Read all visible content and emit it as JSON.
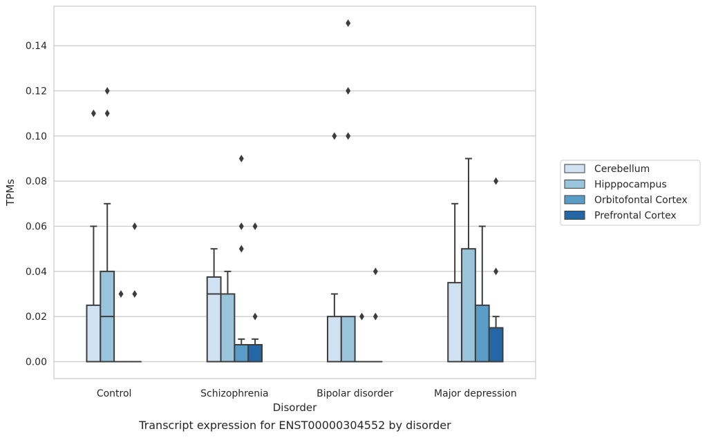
{
  "caption": "Transcript expression for ENST00000304552 by disorder",
  "colors": {
    "grid": "#cccccc",
    "frame": "#cccccc",
    "box_edge": "#3d3d3d"
  },
  "chart_data": {
    "type": "box",
    "xlabel": "Disorder",
    "ylabel": "TPMs",
    "ylim": [
      -0.0075,
      0.1575
    ],
    "yticks": [
      0.0,
      0.02,
      0.04,
      0.06,
      0.08,
      0.1,
      0.12,
      0.14
    ],
    "ytick_labels": [
      "0.00",
      "0.02",
      "0.04",
      "0.06",
      "0.08",
      "0.10",
      "0.12",
      "0.14"
    ],
    "grid": true,
    "legend_position": "right",
    "categories": [
      "Control",
      "Schizophrenia",
      "Bipolar disorder",
      "Major depression"
    ],
    "series": [
      {
        "name": "Cerebellum",
        "color": "#d0e1f2",
        "boxes": [
          {
            "q1": 0.0,
            "median": 0.0,
            "q3": 0.025,
            "whisker_low": 0.0,
            "whisker_high": 0.06,
            "outliers": [
              0.11
            ]
          },
          {
            "q1": 0.0,
            "median": 0.03,
            "q3": 0.0375,
            "whisker_low": 0.0,
            "whisker_high": 0.05,
            "outliers": []
          },
          {
            "q1": 0.0,
            "median": 0.0,
            "q3": 0.02,
            "whisker_low": 0.0,
            "whisker_high": 0.03,
            "outliers": [
              0.1
            ]
          },
          {
            "q1": 0.0,
            "median": 0.0,
            "q3": 0.035,
            "whisker_low": 0.0,
            "whisker_high": 0.07,
            "outliers": []
          }
        ]
      },
      {
        "name": "Hipppocampus",
        "color": "#9ac3dc",
        "boxes": [
          {
            "q1": 0.0,
            "median": 0.02,
            "q3": 0.04,
            "whisker_low": 0.0,
            "whisker_high": 0.07,
            "outliers": [
              0.11,
              0.12
            ]
          },
          {
            "q1": 0.0,
            "median": 0.03,
            "q3": 0.03,
            "whisker_low": 0.0,
            "whisker_high": 0.04,
            "outliers": []
          },
          {
            "q1": 0.0,
            "median": 0.0,
            "q3": 0.02,
            "whisker_low": 0.0,
            "whisker_high": 0.02,
            "outliers": [
              0.1,
              0.12,
              0.15
            ]
          },
          {
            "q1": 0.0,
            "median": 0.0,
            "q3": 0.05,
            "whisker_low": 0.0,
            "whisker_high": 0.09,
            "outliers": []
          }
        ]
      },
      {
        "name": "Orbitofontal Cortex",
        "color": "#5a9cc8",
        "boxes": [
          {
            "q1": 0.0,
            "median": 0.0,
            "q3": 0.0,
            "whisker_low": 0.0,
            "whisker_high": 0.0,
            "outliers": [
              0.03
            ]
          },
          {
            "q1": 0.0,
            "median": 0.0,
            "q3": 0.0075,
            "whisker_low": 0.0,
            "whisker_high": 0.01,
            "outliers": [
              0.05,
              0.06,
              0.09
            ]
          },
          {
            "q1": 0.0,
            "median": 0.0,
            "q3": 0.0,
            "whisker_low": 0.0,
            "whisker_high": 0.0,
            "outliers": [
              0.02
            ]
          },
          {
            "q1": 0.0,
            "median": 0.0,
            "q3": 0.025,
            "whisker_low": 0.0,
            "whisker_high": 0.06,
            "outliers": []
          }
        ]
      },
      {
        "name": "Prefrontal Cortex",
        "color": "#2566a5",
        "boxes": [
          {
            "q1": 0.0,
            "median": 0.0,
            "q3": 0.0,
            "whisker_low": 0.0,
            "whisker_high": 0.0,
            "outliers": [
              0.03,
              0.06
            ]
          },
          {
            "q1": 0.0,
            "median": 0.0,
            "q3": 0.0075,
            "whisker_low": 0.0,
            "whisker_high": 0.01,
            "outliers": [
              0.02,
              0.06
            ]
          },
          {
            "q1": 0.0,
            "median": 0.0,
            "q3": 0.0,
            "whisker_low": 0.0,
            "whisker_high": 0.0,
            "outliers": [
              0.02,
              0.04
            ]
          },
          {
            "q1": 0.0,
            "median": 0.0,
            "q3": 0.015,
            "whisker_low": 0.0,
            "whisker_high": 0.02,
            "outliers": [
              0.04,
              0.08
            ]
          }
        ]
      }
    ]
  }
}
